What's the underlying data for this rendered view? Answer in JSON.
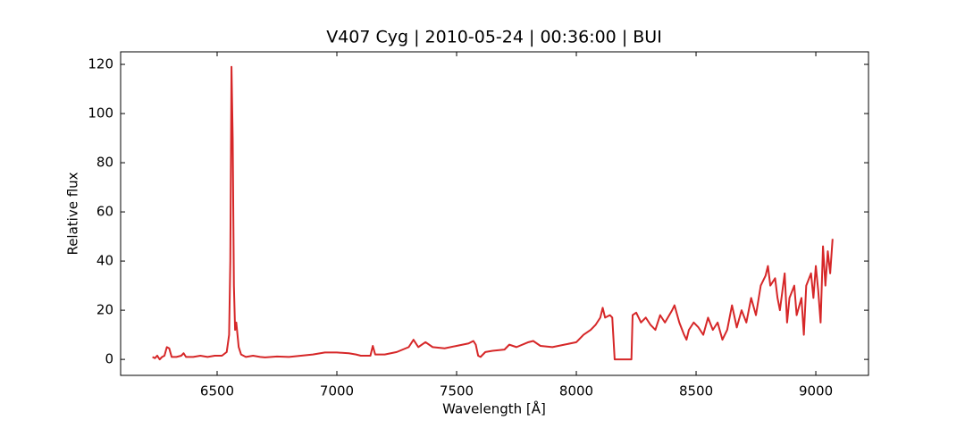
{
  "chart_data": {
    "type": "line",
    "title": "V407 Cyg | 2010-05-24 | 00:36:00 | BUI",
    "xlabel": "Wavelength [Å]",
    "ylabel": "Relative flux",
    "xlim": [
      6097,
      9220
    ],
    "ylim": [
      -6.5,
      125.1
    ],
    "xticks": [
      6500,
      7000,
      7500,
      8000,
      8500,
      9000
    ],
    "yticks": [
      0,
      20,
      40,
      60,
      80,
      100,
      120
    ],
    "x": [
      6230,
      6240,
      6250,
      6260,
      6270,
      6280,
      6290,
      6300,
      6310,
      6330,
      6350,
      6360,
      6370,
      6400,
      6430,
      6460,
      6490,
      6520,
      6540,
      6550,
      6555,
      6560,
      6565,
      6570,
      6575,
      6580,
      6585,
      6590,
      6600,
      6620,
      6650,
      6680,
      6700,
      6750,
      6800,
      6850,
      6900,
      6950,
      7000,
      7050,
      7080,
      7100,
      7140,
      7150,
      7160,
      7200,
      7250,
      7300,
      7320,
      7340,
      7370,
      7400,
      7450,
      7500,
      7550,
      7570,
      7580,
      7590,
      7600,
      7620,
      7650,
      7700,
      7720,
      7750,
      7800,
      7820,
      7850,
      7900,
      7950,
      8000,
      8030,
      8060,
      8080,
      8100,
      8110,
      8120,
      8140,
      8150,
      8160,
      8230,
      8235,
      8250,
      8270,
      8290,
      8310,
      8330,
      8350,
      8370,
      8400,
      8410,
      8430,
      8450,
      8460,
      8470,
      8490,
      8510,
      8530,
      8550,
      8570,
      8590,
      8610,
      8630,
      8650,
      8670,
      8690,
      8710,
      8730,
      8750,
      8770,
      8790,
      8800,
      8810,
      8830,
      8840,
      8850,
      8870,
      8880,
      8890,
      8910,
      8920,
      8940,
      8950,
      8960,
      8980,
      8990,
      9000,
      9010,
      9020,
      9030,
      9040,
      9050,
      9060,
      9070
    ],
    "series": [
      {
        "name": "V407 Cyg",
        "color": "#d62728",
        "values": [
          1,
          0.5,
          1.5,
          0,
          1,
          1.5,
          5,
          4.5,
          1,
          1,
          1.5,
          2.5,
          1,
          1,
          1.5,
          1,
          1.5,
          1.5,
          3,
          10,
          40,
          119,
          90,
          30,
          12,
          15,
          10,
          5,
          2,
          1,
          1.5,
          1,
          0.8,
          1.2,
          1,
          1.5,
          2,
          2.8,
          2.8,
          2.5,
          2,
          1.5,
          1.5,
          5.5,
          2,
          2,
          3,
          5,
          8,
          5,
          7,
          5,
          4.5,
          5.5,
          6.5,
          7.5,
          6,
          1.5,
          1,
          3,
          3.5,
          4,
          6,
          5,
          7,
          7.5,
          5.5,
          5,
          6,
          7,
          10,
          12,
          14,
          17,
          21,
          17,
          18,
          17,
          0,
          0,
          18,
          19,
          15,
          17,
          14,
          12,
          18,
          15,
          20,
          22,
          15,
          10,
          8,
          12,
          15,
          13,
          10,
          17,
          12,
          15,
          8,
          12,
          22,
          13,
          20,
          15,
          25,
          18,
          30,
          34,
          38,
          30,
          33,
          25,
          20,
          35,
          15,
          25,
          30,
          18,
          25,
          10,
          30,
          35,
          25,
          38,
          28,
          15,
          46,
          30,
          44,
          35,
          49
        ]
      }
    ]
  }
}
